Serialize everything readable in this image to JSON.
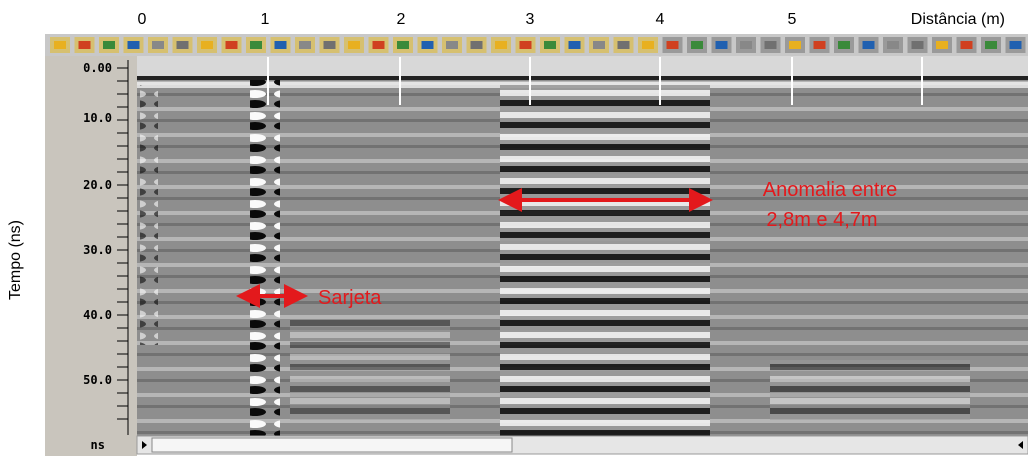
{
  "distance_axis": {
    "labels": [
      "0",
      "1",
      "2",
      "3",
      "4",
      "5"
    ],
    "title": "Distância (m)"
  },
  "time_axis": {
    "title": "Tempo (ns)",
    "labels": [
      "0.00",
      "10.0",
      "20.0",
      "30.0",
      "40.0",
      "50.0",
      "ns"
    ]
  },
  "annotations": {
    "gutter": "Sarjeta",
    "anomaly_line1": "Anomalia entre",
    "anomaly_line2": "2,8m e 4,7m"
  }
}
